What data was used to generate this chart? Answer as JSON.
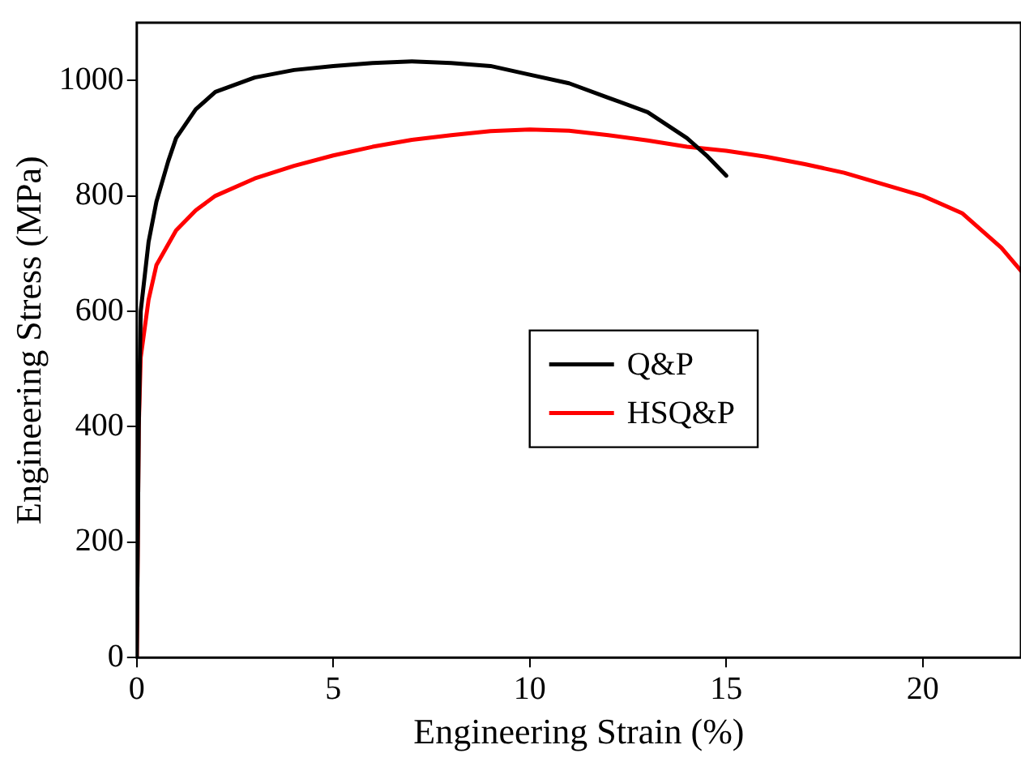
{
  "chart_data": {
    "type": "line",
    "xlabel": "Engineering Strain (%)",
    "ylabel": "Engineering Stress (MPa)",
    "xlim": [
      0,
      22.5
    ],
    "xticks": [
      0,
      5,
      10,
      15,
      20
    ],
    "ylim": [
      0,
      1100
    ],
    "yticks": [
      0,
      200,
      400,
      600,
      800,
      1000
    ],
    "grid": false,
    "legend": "center",
    "marker": "none",
    "line_style": "solid",
    "series": [
      {
        "name": "Q&P",
        "color": "#000000",
        "x": [
          0,
          0.05,
          0.1,
          0.3,
          0.5,
          0.8,
          1,
          1.5,
          2,
          3,
          4,
          5,
          6,
          7,
          8,
          9,
          10,
          11,
          12,
          13,
          14,
          14.5,
          15
        ],
        "values": [
          0,
          400,
          600,
          720,
          790,
          860,
          900,
          950,
          980,
          1005,
          1018,
          1025,
          1030,
          1033,
          1030,
          1025,
          1010,
          995,
          970,
          945,
          900,
          870,
          835
        ]
      },
      {
        "name": "HSQ&P",
        "color": "#ff0000",
        "x": [
          0,
          0.05,
          0.1,
          0.3,
          0.5,
          1,
          1.5,
          2,
          3,
          4,
          5,
          6,
          7,
          8,
          9,
          10,
          11,
          12,
          13,
          14,
          15,
          16,
          17,
          18,
          19,
          20,
          21,
          22,
          22.5
        ],
        "values": [
          0,
          400,
          520,
          620,
          680,
          740,
          775,
          800,
          830,
          852,
          870,
          885,
          897,
          905,
          912,
          915,
          913,
          905,
          896,
          885,
          878,
          868,
          855,
          840,
          820,
          800,
          770,
          710,
          670
        ]
      }
    ]
  }
}
